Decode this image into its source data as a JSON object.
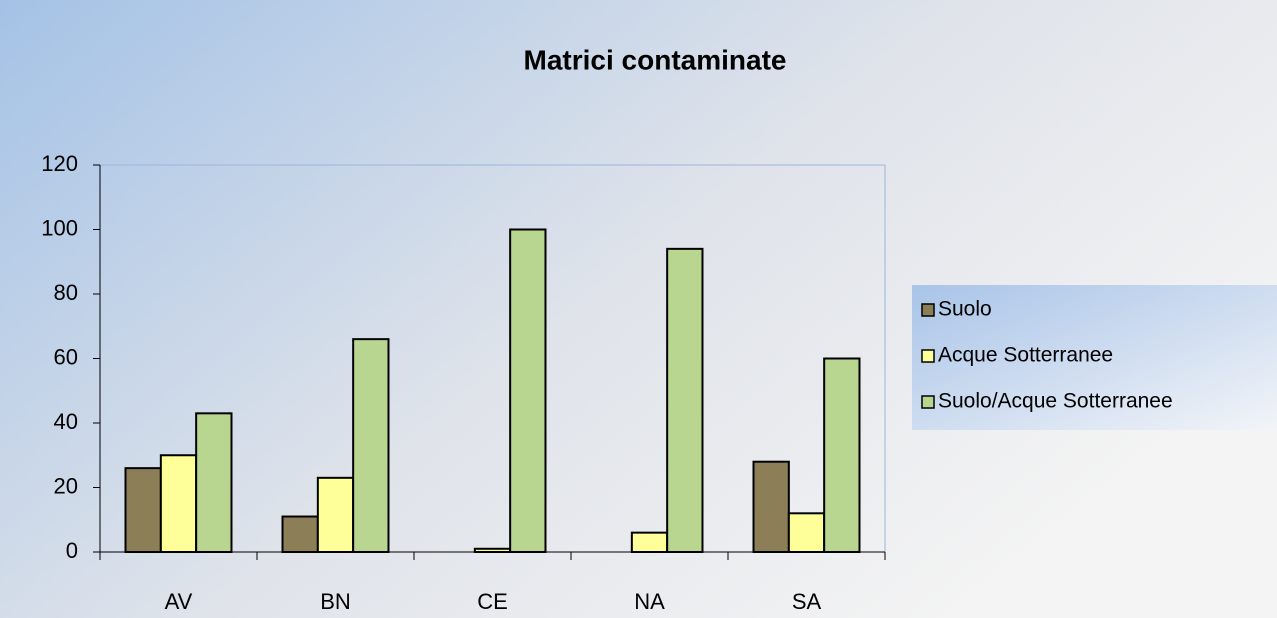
{
  "chart_data": {
    "type": "bar",
    "title": "Matrici contaminate",
    "categories": [
      "AV",
      "BN",
      "CE",
      "NA",
      "SA"
    ],
    "series": [
      {
        "name": "Suolo",
        "color": "#8c7e56",
        "values": [
          26,
          11,
          0,
          0,
          28
        ]
      },
      {
        "name": "Acque Sotterranee",
        "color": "#ffff99",
        "values": [
          30,
          23,
          1,
          6,
          12
        ]
      },
      {
        "name": "Suolo/Acque Sotterranee",
        "color": "#b8d690",
        "values": [
          43,
          66,
          100,
          94,
          60
        ]
      }
    ],
    "ylim": [
      0,
      120
    ],
    "yticks": [
      0,
      20,
      40,
      60,
      80,
      100,
      120
    ],
    "grid": false,
    "legend": "right"
  }
}
